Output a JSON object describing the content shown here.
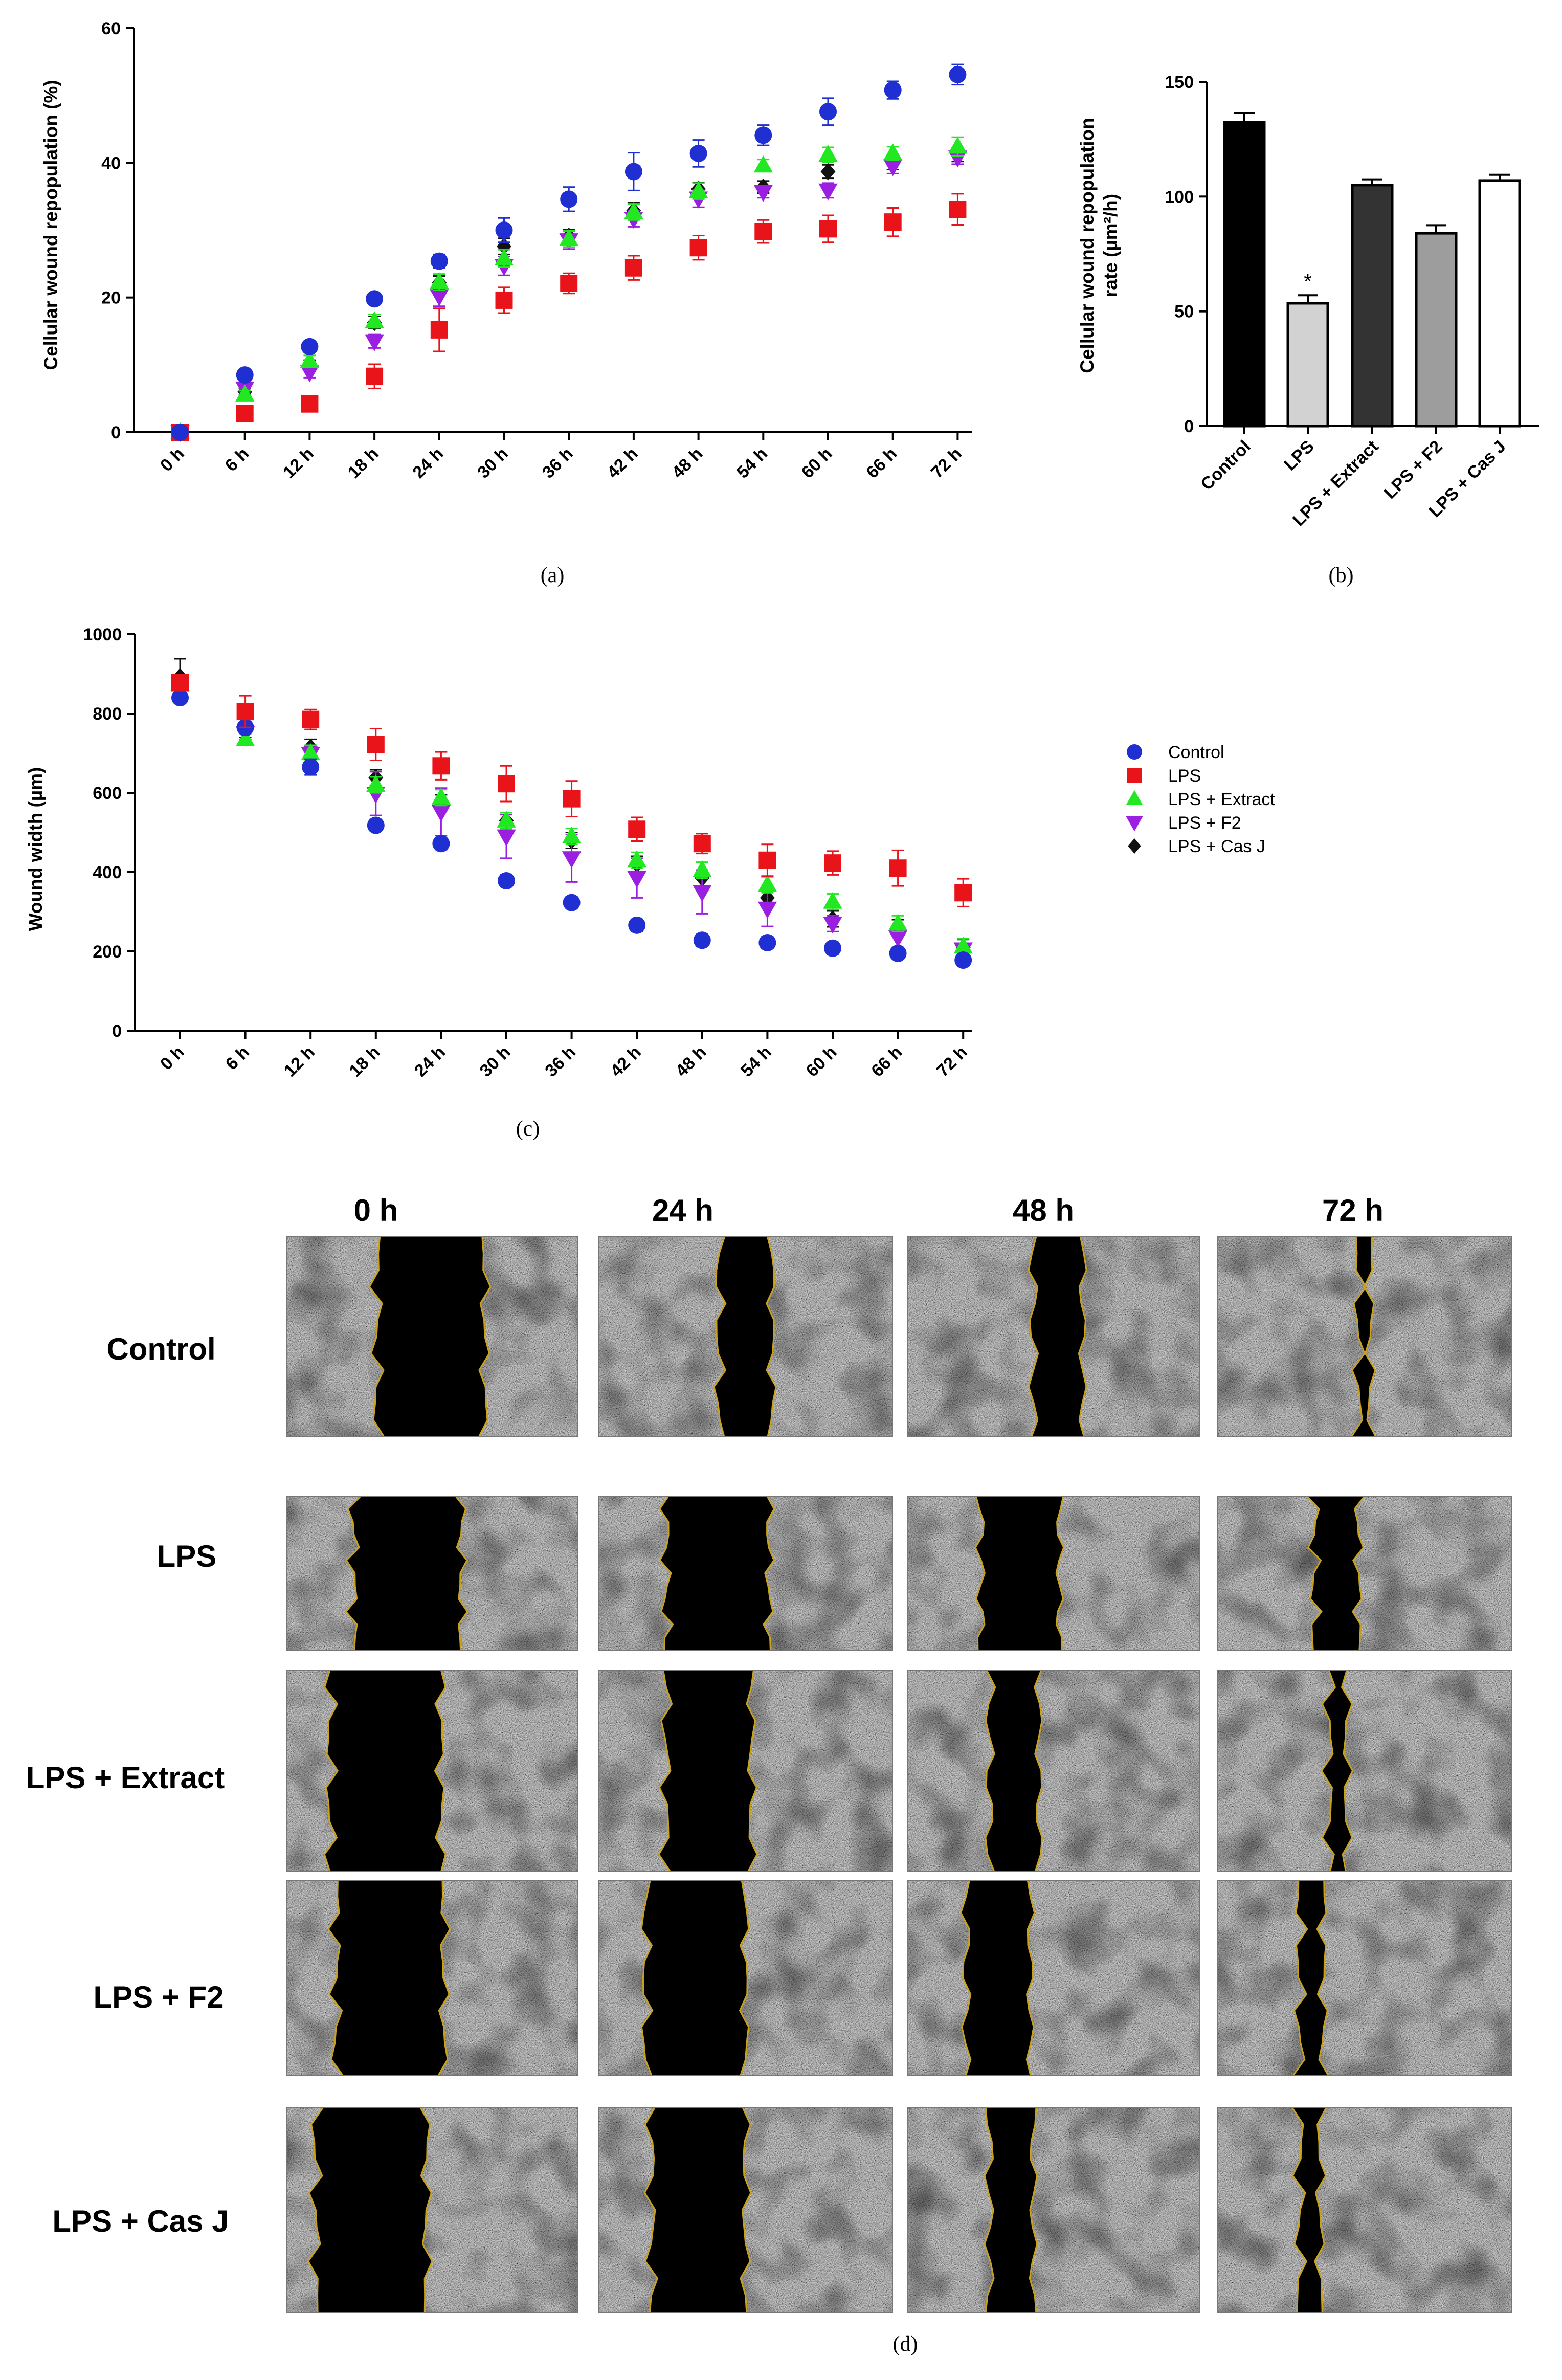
{
  "colors": {
    "Control": "#1f2fd1",
    "LPS": "#e8141a",
    "LPS + Extract": "#22e822",
    "LPS + F2": "#9b1fe0",
    "LPS + Cas J": "#111111"
  },
  "chart_data": [
    {
      "id": "a",
      "type": "scatter",
      "caption": "(a)",
      "ylabel": "Cellular wound repopulation (%)",
      "xlabel": "",
      "ylim": [
        0,
        60
      ],
      "yticks": [
        0,
        20,
        40,
        60
      ],
      "categories": [
        "0 h",
        "6 h",
        "12 h",
        "18 h",
        "24 h",
        "30 h",
        "36 h",
        "42 h",
        "48 h",
        "54 h",
        "60 h",
        "66 h",
        "72 h"
      ],
      "series": [
        {
          "name": "Control",
          "marker": "circle",
          "values": [
            0,
            8.5,
            12.7,
            19.8,
            25.4,
            30.0,
            34.6,
            38.7,
            41.4,
            44.1,
            47.6,
            50.8,
            53.1
          ],
          "errors": [
            0.3,
            0.6,
            0.7,
            0.8,
            1.0,
            1.8,
            1.8,
            2.8,
            2.0,
            1.5,
            2.0,
            1.3,
            1.5
          ]
        },
        {
          "name": "LPS",
          "marker": "square",
          "values": [
            0,
            2.8,
            4.2,
            8.3,
            15.2,
            19.6,
            22.1,
            24.4,
            27.4,
            29.8,
            30.2,
            31.2,
            33.1
          ],
          "errors": [
            0.3,
            0.8,
            0.7,
            1.8,
            3.2,
            1.9,
            1.5,
            1.8,
            1.8,
            1.7,
            2.0,
            2.1,
            2.3
          ]
        },
        {
          "name": "LPS + Extract",
          "marker": "triangle-up",
          "values": [
            0,
            5.6,
            10.6,
            16.5,
            22.3,
            25.8,
            28.7,
            32.7,
            35.8,
            39.6,
            41.2,
            41.4,
            42.4
          ],
          "errors": [
            0.2,
            0.6,
            0.8,
            1.0,
            1.2,
            1.3,
            1.2,
            1.2,
            1.2,
            0.9,
            1.1,
            1.0,
            1.4
          ]
        },
        {
          "name": "LPS + F2",
          "marker": "triangle-down",
          "values": [
            0,
            6.5,
            8.9,
            13.5,
            20.2,
            24.7,
            28.5,
            31.7,
            34.7,
            35.7,
            35.9,
            39.5,
            40.8
          ],
          "errors": [
            0.2,
            0.5,
            0.8,
            1.0,
            1.5,
            1.4,
            1.3,
            1.2,
            1.3,
            0.9,
            1.1,
            1.1,
            1.0
          ]
        },
        {
          "name": "LPS + Cas J",
          "marker": "diamond",
          "values": [
            0,
            6.0,
            10.1,
            16.3,
            22.2,
            27.6,
            29.1,
            32.9,
            36.1,
            36.4,
            38.7,
            40.0,
            41.2
          ],
          "errors": [
            0.2,
            0.5,
            0.6,
            0.9,
            1.0,
            1.2,
            1.0,
            1.2,
            1.0,
            0.9,
            1.0,
            1.0,
            1.0
          ]
        }
      ]
    },
    {
      "id": "b",
      "type": "bar",
      "caption": "(b)",
      "ylabel_lines": [
        "Cellular wound repopulation",
        "rate (µm²/h)"
      ],
      "ylim": [
        0,
        150
      ],
      "yticks": [
        0,
        50,
        100,
        150
      ],
      "categories": [
        "Control",
        "LPS",
        "LPS + Extract",
        "LPS + F2",
        "LPS + Cas J"
      ],
      "values": [
        132.5,
        53.5,
        105.0,
        84.0,
        107.0
      ],
      "errors": [
        4.0,
        3.5,
        2.5,
        3.5,
        2.5
      ],
      "bar_colors": [
        "#000000",
        "#d2d2d2",
        "#333333",
        "#9d9d9d",
        "#ffffff"
      ],
      "annotations": [
        {
          "category": "LPS",
          "text": "*"
        }
      ]
    },
    {
      "id": "c",
      "type": "scatter",
      "caption": "(c)",
      "ylabel": "Wound width (µm)",
      "xlabel": "",
      "ylim": [
        0,
        1000
      ],
      "yticks": [
        0,
        200,
        400,
        600,
        800,
        1000
      ],
      "categories": [
        "0 h",
        "6 h",
        "12 h",
        "18 h",
        "24 h",
        "30 h",
        "36 h",
        "42 h",
        "48 h",
        "54 h",
        "60 h",
        "66 h",
        "72 h"
      ],
      "legend_position": "right",
      "series": [
        {
          "name": "Control",
          "marker": "circle",
          "values": [
            840,
            765,
            665,
            518,
            472,
            378,
            323,
            266,
            228,
            222,
            208,
            195,
            178
          ],
          "errors": [
            10,
            15,
            20,
            15,
            15,
            15,
            15,
            15,
            15,
            15,
            15,
            15,
            15
          ]
        },
        {
          "name": "LPS",
          "marker": "square",
          "values": [
            878,
            805,
            785,
            722,
            668,
            623,
            585,
            508,
            472,
            430,
            423,
            410,
            348
          ],
          "errors": [
            15,
            40,
            25,
            40,
            35,
            45,
            45,
            30,
            25,
            40,
            30,
            45,
            35
          ]
        },
        {
          "name": "LPS + Extract",
          "marker": "triangle-up",
          "values": [
            875,
            735,
            700,
            620,
            588,
            530,
            490,
            430,
            405,
            368,
            325,
            270,
            212
          ],
          "errors": [
            10,
            15,
            20,
            20,
            20,
            20,
            20,
            20,
            20,
            20,
            20,
            20,
            20
          ]
        },
        {
          "name": "LPS + F2",
          "marker": "triangle-down",
          "values": [
            875,
            750,
            698,
            598,
            552,
            490,
            435,
            385,
            350,
            308,
            270,
            235,
            205
          ],
          "errors": [
            10,
            15,
            20,
            55,
            60,
            55,
            60,
            50,
            55,
            45,
            20,
            25,
            15
          ]
        },
        {
          "name": "LPS + Cas J",
          "marker": "diamond",
          "values": [
            893,
            760,
            715,
            638,
            575,
            530,
            480,
            420,
            385,
            335,
            282,
            260,
            210
          ],
          "errors": [
            45,
            20,
            20,
            20,
            20,
            20,
            20,
            20,
            20,
            20,
            20,
            20,
            20
          ]
        }
      ]
    }
  ],
  "panel_d": {
    "caption": "(d)",
    "time_headers": [
      "0 h",
      "24 h",
      "48 h",
      "72 h"
    ],
    "row_labels": [
      "Control",
      "LPS",
      "LPS + Extract",
      "LPS + F2",
      "LPS + Cas J"
    ],
    "gap_fractions": [
      [
        [
          0.31,
          0.68
        ],
        [
          0.41,
          0.59
        ],
        [
          0.43,
          0.6
        ],
        [
          0.48,
          0.52
        ]
      ],
      [
        [
          0.23,
          0.6
        ],
        [
          0.23,
          0.58
        ],
        [
          0.25,
          0.52
        ],
        [
          0.33,
          0.48
        ]
      ],
      [
        [
          0.15,
          0.53
        ],
        [
          0.23,
          0.52
        ],
        [
          0.28,
          0.45
        ],
        [
          0.38,
          0.44
        ]
      ],
      [
        [
          0.17,
          0.54
        ],
        [
          0.16,
          0.5
        ],
        [
          0.2,
          0.42
        ],
        [
          0.28,
          0.36
        ]
      ],
      [
        [
          0.1,
          0.48
        ],
        [
          0.18,
          0.5
        ],
        [
          0.28,
          0.43
        ],
        [
          0.28,
          0.35
        ]
      ]
    ]
  }
}
